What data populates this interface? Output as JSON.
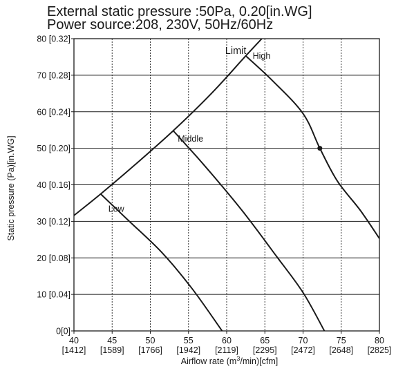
{
  "chart_data": {
    "type": "line",
    "title_line1": "External static pressure :50Pa, 0.20[in.WG]",
    "title_line2": "Power source:208, 230V, 50Hz/60Hz",
    "xlabel_pre": "Airflow rate (m",
    "xlabel_sup": "3",
    "xlabel_post": "/min)[cfm]",
    "ylabel": "Static pressure (Pa)[in.WG]",
    "xlim": [
      40,
      80
    ],
    "ylim": [
      0,
      80
    ],
    "grid": true,
    "x_ticks": [
      {
        "value": 40,
        "label": "40",
        "sub": "[1412]"
      },
      {
        "value": 45,
        "label": "45",
        "sub": "[1589]"
      },
      {
        "value": 50,
        "label": "50",
        "sub": "[1766]"
      },
      {
        "value": 55,
        "label": "55",
        "sub": "[1942]"
      },
      {
        "value": 60,
        "label": "60",
        "sub": "[2119]"
      },
      {
        "value": 65,
        "label": "65",
        "sub": "[2295]"
      },
      {
        "value": 70,
        "label": "70",
        "sub": "[2472]"
      },
      {
        "value": 75,
        "label": "75",
        "sub": "[2648]"
      },
      {
        "value": 80,
        "label": "80",
        "sub": "[2825]"
      }
    ],
    "y_ticks": [
      {
        "value": 0,
        "label": "0[0]"
      },
      {
        "value": 10,
        "label": "10 [0.04]"
      },
      {
        "value": 20,
        "label": "20 [0.08]"
      },
      {
        "value": 30,
        "label": "30 [0.12]"
      },
      {
        "value": 40,
        "label": "40 [0.16]"
      },
      {
        "value": 50,
        "label": "50 [0.20]"
      },
      {
        "value": 60,
        "label": "60 [0.24]"
      },
      {
        "value": 70,
        "label": "70 [0.28]"
      },
      {
        "value": 80,
        "label": "80 [0.32]"
      }
    ],
    "series": [
      {
        "name": "Limit",
        "points": [
          [
            40,
            31.6
          ],
          [
            43.5,
            37.5
          ],
          [
            48,
            45.5
          ],
          [
            53,
            54.8
          ],
          [
            58,
            65.0
          ],
          [
            62.5,
            75.3
          ],
          [
            64.6,
            80
          ]
        ]
      },
      {
        "name": "High",
        "points": [
          [
            62.5,
            75.3
          ],
          [
            66,
            68.5
          ],
          [
            70,
            59.5
          ],
          [
            72.2,
            50.0
          ],
          [
            74.5,
            41.0
          ],
          [
            77.5,
            33.0
          ],
          [
            80,
            25.3
          ]
        ]
      },
      {
        "name": "Middle",
        "points": [
          [
            53,
            54.8
          ],
          [
            57,
            45.5
          ],
          [
            62,
            33.0
          ],
          [
            66.5,
            20.5
          ],
          [
            70,
            10.5
          ],
          [
            72.8,
            0
          ]
        ]
      },
      {
        "name": "Low",
        "points": [
          [
            43.5,
            37.5
          ],
          [
            47,
            30.5
          ],
          [
            51.5,
            21.5
          ],
          [
            55.5,
            11.5
          ],
          [
            59.4,
            0
          ]
        ]
      }
    ],
    "operating_point": {
      "x": 72.2,
      "y": 50
    },
    "annotations": [
      {
        "text": "Limit",
        "x": 59.8,
        "y": 75.8
      },
      {
        "text": "High",
        "x": 63.4,
        "y": 74.5
      },
      {
        "text": "Middle",
        "x": 53.6,
        "y": 51.8
      },
      {
        "text": "Low",
        "x": 44.5,
        "y": 32.6
      }
    ]
  }
}
